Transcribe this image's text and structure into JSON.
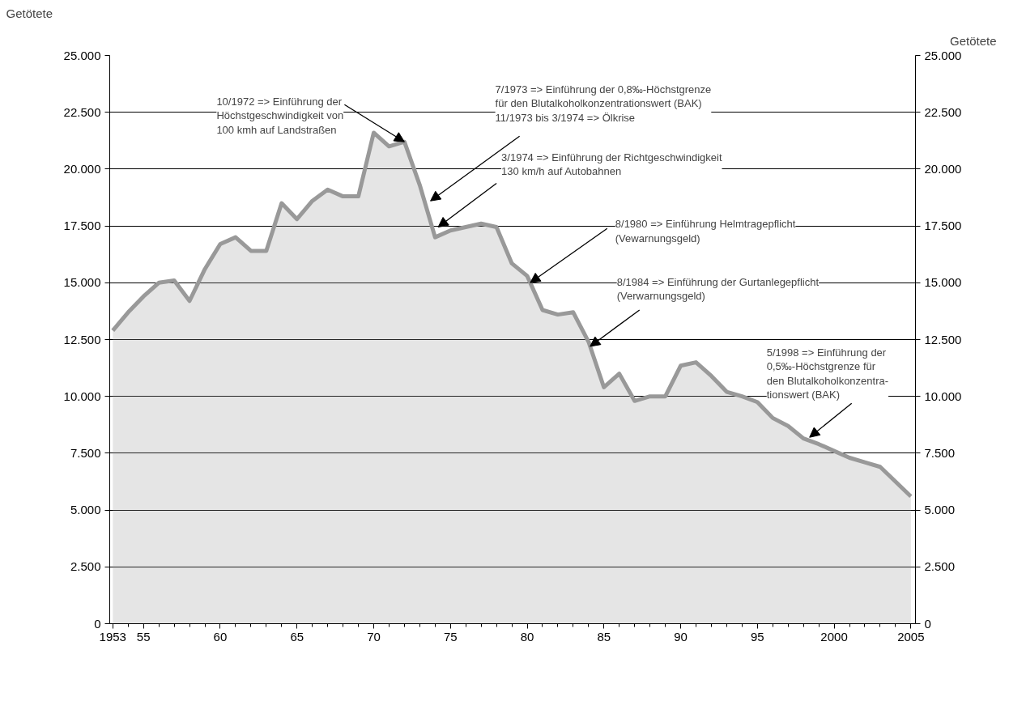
{
  "chart_data": {
    "type": "area",
    "ylabel": "Getötete",
    "y2label": "Getötete",
    "x": [
      1953,
      1954,
      1955,
      1956,
      1957,
      1958,
      1959,
      1960,
      1961,
      1962,
      1963,
      1964,
      1965,
      1966,
      1967,
      1968,
      1969,
      1970,
      1971,
      1972,
      1973,
      1974,
      1975,
      1976,
      1977,
      1978,
      1979,
      1980,
      1981,
      1982,
      1983,
      1984,
      1985,
      1986,
      1987,
      1988,
      1989,
      1990,
      1991,
      1992,
      1993,
      1994,
      1995,
      1996,
      1997,
      1998,
      1999,
      2000,
      2001,
      2002,
      2003,
      2004,
      2005
    ],
    "series": [
      {
        "color": "#999999",
        "values": [
          12900,
          13700,
          14400,
          15000,
          15100,
          14200,
          15600,
          16700,
          17000,
          16400,
          16400,
          18500,
          17800,
          18600,
          19100,
          18800,
          18800,
          21600,
          21000,
          21200,
          19300,
          17000,
          17300,
          17450,
          17600,
          17450,
          15850,
          15300,
          13800,
          13600,
          13700,
          12400,
          10400,
          11000,
          9800,
          10000,
          10000,
          11350,
          11500,
          10900,
          10200,
          10000,
          9750,
          9050,
          8700,
          8150,
          7900,
          7600,
          7300,
          7100,
          6900,
          6250,
          5600
        ]
      }
    ],
    "xlim": [
      1952.8,
      2005.3
    ],
    "ylim": [
      0,
      25000
    ],
    "y2lim": [
      0,
      25000
    ],
    "xticks": [
      {
        "value": 1953,
        "label": "1953"
      },
      {
        "value": 1955,
        "label": "55"
      },
      {
        "value": 1960,
        "label": "60"
      },
      {
        "value": 1965,
        "label": "65"
      },
      {
        "value": 1970,
        "label": "70"
      },
      {
        "value": 1975,
        "label": "75"
      },
      {
        "value": 1980,
        "label": "80"
      },
      {
        "value": 1985,
        "label": "85"
      },
      {
        "value": 1990,
        "label": "90"
      },
      {
        "value": 1995,
        "label": "95"
      },
      {
        "value": 2000,
        "label": "2000"
      },
      {
        "value": 2005,
        "label": "2005"
      }
    ],
    "yticks": [
      0,
      {
        "value": 2500,
        "label": "2.500"
      },
      {
        "value": 5000,
        "label": "5.000"
      },
      {
        "value": 7500,
        "label": "7.500"
      },
      {
        "value": 10000,
        "label": "10.000"
      },
      {
        "value": 12500,
        "label": "12.500"
      },
      {
        "value": 15000,
        "label": "15.000"
      },
      {
        "value": 17500,
        "label": "17.500"
      },
      {
        "value": 20000,
        "label": "20.000"
      },
      {
        "value": 22500,
        "label": "22.500"
      },
      {
        "value": 25000,
        "label": "25.000"
      }
    ],
    "y2ticks": [
      0,
      {
        "value": 2500,
        "label": "2.500"
      },
      {
        "value": 5000,
        "label": "5.000"
      },
      {
        "value": 7500,
        "label": "7.500"
      },
      {
        "value": 10000,
        "label": "10.000"
      },
      {
        "value": 12500,
        "label": "12.500"
      },
      {
        "value": 15000,
        "label": "15.000"
      },
      {
        "value": 17500,
        "label": "17.500"
      },
      {
        "value": 20000,
        "label": "20.000"
      },
      {
        "value": 22500,
        "label": "22.500"
      },
      {
        "value": 25000,
        "label": "25.000"
      }
    ],
    "grid": "y",
    "annotations": [
      {
        "text": "10/1972 => Einführung der\nHöchstgeschwindigkeit von\n100 kmh auf Landstraßen",
        "x": 1972,
        "y": 21200
      },
      {
        "text": "7/1973 => Einführung der 0,8‰-Höchstgrenze\nfür den Blutalkoholkonzentrationswert (BAK)\n11/1973 bis 3/1974 => Ölkrise",
        "x": 1973.7,
        "y": 18600
      },
      {
        "text": "3/1974 => Einführung der Richtgeschwindigkeit\n130 km/h auf Autobahnen",
        "x": 1974.2,
        "y": 17450
      },
      {
        "text": "8/1980 => Einführung Helmtragepflicht\n(Vewarnungsgeld)",
        "x": 1980.2,
        "y": 15000
      },
      {
        "text": "8/1984 => Einführung der Gurtanlegepflicht\n(Verwarnungsgeld)",
        "x": 1984.1,
        "y": 12200
      },
      {
        "text": "5/1998 => Einführung der\n0,5‰-Höchstgrenze für\nden Blutalkoholkonzentra-\ntionswert (BAK)",
        "x": 1998.4,
        "y": 8200
      }
    ]
  }
}
